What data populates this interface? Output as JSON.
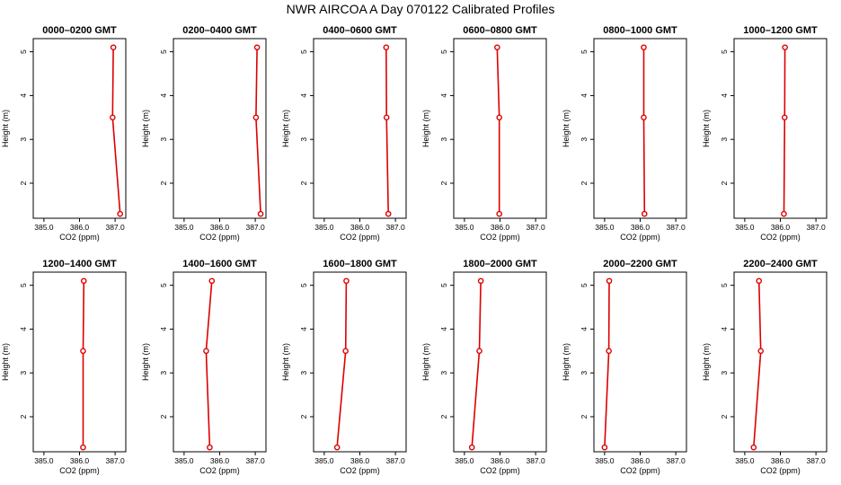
{
  "title": "NWR AIRCOA A  Day 070122  Calibrated Profiles",
  "style": {
    "line_color": "#dd0000",
    "point_color": "#dd0000",
    "axis_color": "#000000"
  },
  "chart_data": [
    {
      "type": "line",
      "title": "0000–0200 GMT",
      "xlabel": "CO2 (ppm)",
      "ylabel": "Height (m)",
      "xlim": [
        384.7,
        387.3
      ],
      "ylim": [
        1.2,
        5.3
      ],
      "xticks": [
        385.0,
        386.0,
        387.0
      ],
      "xtick_labels": [
        "385.0",
        "386.0",
        "387.0"
      ],
      "yticks": [
        2,
        3,
        4,
        5
      ],
      "ytick_labels": [
        "2",
        "3",
        "4",
        "5"
      ],
      "series": [
        {
          "x": [
            387.14,
            386.93,
            386.95
          ],
          "y": [
            1.3,
            3.5,
            5.1
          ]
        }
      ]
    },
    {
      "type": "line",
      "title": "0200–0400 GMT",
      "xlabel": "CO2 (ppm)",
      "ylabel": "Height (m)",
      "xlim": [
        384.7,
        387.3
      ],
      "ylim": [
        1.2,
        5.3
      ],
      "xticks": [
        385.0,
        386.0,
        387.0
      ],
      "xtick_labels": [
        "385.0",
        "386.0",
        "387.0"
      ],
      "yticks": [
        2,
        3,
        4,
        5
      ],
      "ytick_labels": [
        "2",
        "3",
        "4",
        "5"
      ],
      "series": [
        {
          "x": [
            387.15,
            387.02,
            387.05
          ],
          "y": [
            1.3,
            3.5,
            5.1
          ]
        }
      ]
    },
    {
      "type": "line",
      "title": "0400–0600 GMT",
      "xlabel": "CO2 (ppm)",
      "ylabel": "Height (m)",
      "xlim": [
        384.7,
        387.3
      ],
      "ylim": [
        1.2,
        5.3
      ],
      "xticks": [
        385.0,
        386.0,
        387.0
      ],
      "xtick_labels": [
        "385.0",
        "386.0",
        "387.0"
      ],
      "yticks": [
        2,
        3,
        4,
        5
      ],
      "ytick_labels": [
        "2",
        "3",
        "4",
        "5"
      ],
      "series": [
        {
          "x": [
            386.8,
            386.75,
            386.74
          ],
          "y": [
            1.3,
            3.5,
            5.1
          ]
        }
      ]
    },
    {
      "type": "line",
      "title": "0600–0800 GMT",
      "xlabel": "CO2 (ppm)",
      "ylabel": "Height (m)",
      "xlim": [
        384.7,
        387.3
      ],
      "ylim": [
        1.2,
        5.3
      ],
      "xticks": [
        385.0,
        386.0,
        387.0
      ],
      "xtick_labels": [
        "385.0",
        "386.0",
        "387.0"
      ],
      "yticks": [
        2,
        3,
        4,
        5
      ],
      "ytick_labels": [
        "2",
        "3",
        "4",
        "5"
      ],
      "series": [
        {
          "x": [
            385.98,
            385.98,
            385.92
          ],
          "y": [
            1.3,
            3.5,
            5.1
          ]
        }
      ]
    },
    {
      "type": "line",
      "title": "0800–1000 GMT",
      "xlabel": "CO2 (ppm)",
      "ylabel": "Height (m)",
      "xlim": [
        384.7,
        387.3
      ],
      "ylim": [
        1.2,
        5.3
      ],
      "xticks": [
        385.0,
        386.0,
        387.0
      ],
      "xtick_labels": [
        "385.0",
        "386.0",
        "387.0"
      ],
      "yticks": [
        2,
        3,
        4,
        5
      ],
      "ytick_labels": [
        "2",
        "3",
        "4",
        "5"
      ],
      "series": [
        {
          "x": [
            386.12,
            386.1,
            386.1
          ],
          "y": [
            1.3,
            3.5,
            5.1
          ]
        }
      ]
    },
    {
      "type": "line",
      "title": "1000–1200 GMT",
      "xlabel": "CO2 (ppm)",
      "ylabel": "Height (m)",
      "xlim": [
        384.7,
        387.3
      ],
      "ylim": [
        1.2,
        5.3
      ],
      "xticks": [
        385.0,
        386.0,
        387.0
      ],
      "xtick_labels": [
        "385.0",
        "386.0",
        "387.0"
      ],
      "yticks": [
        2,
        3,
        4,
        5
      ],
      "ytick_labels": [
        "2",
        "3",
        "4",
        "5"
      ],
      "series": [
        {
          "x": [
            386.1,
            386.12,
            386.13
          ],
          "y": [
            1.3,
            3.5,
            5.1
          ]
        }
      ]
    },
    {
      "type": "line",
      "title": "1200–1400 GMT",
      "xlabel": "CO2 (ppm)",
      "ylabel": "Height (m)",
      "xlim": [
        384.7,
        387.3
      ],
      "ylim": [
        1.2,
        5.3
      ],
      "xticks": [
        385.0,
        386.0,
        387.0
      ],
      "xtick_labels": [
        "385.0",
        "386.0",
        "387.0"
      ],
      "yticks": [
        2,
        3,
        4,
        5
      ],
      "ytick_labels": [
        "2",
        "3",
        "4",
        "5"
      ],
      "series": [
        {
          "x": [
            386.1,
            386.1,
            386.12
          ],
          "y": [
            1.3,
            3.5,
            5.1
          ]
        }
      ]
    },
    {
      "type": "line",
      "title": "1400–1600 GMT",
      "xlabel": "CO2 (ppm)",
      "ylabel": "Height (m)",
      "xlim": [
        384.7,
        387.3
      ],
      "ylim": [
        1.2,
        5.3
      ],
      "xticks": [
        385.0,
        386.0,
        387.0
      ],
      "xtick_labels": [
        "385.0",
        "386.0",
        "387.0"
      ],
      "yticks": [
        2,
        3,
        4,
        5
      ],
      "ytick_labels": [
        "2",
        "3",
        "4",
        "5"
      ],
      "series": [
        {
          "x": [
            385.72,
            385.62,
            385.78
          ],
          "y": [
            1.3,
            3.5,
            5.1
          ]
        }
      ]
    },
    {
      "type": "line",
      "title": "1600–1800 GMT",
      "xlabel": "CO2 (ppm)",
      "ylabel": "Height (m)",
      "xlim": [
        384.7,
        387.3
      ],
      "ylim": [
        1.2,
        5.3
      ],
      "xticks": [
        385.0,
        386.0,
        387.0
      ],
      "xtick_labels": [
        "385.0",
        "386.0",
        "387.0"
      ],
      "yticks": [
        2,
        3,
        4,
        5
      ],
      "ytick_labels": [
        "2",
        "3",
        "4",
        "5"
      ],
      "series": [
        {
          "x": [
            385.36,
            385.6,
            385.62
          ],
          "y": [
            1.3,
            3.5,
            5.1
          ]
        }
      ]
    },
    {
      "type": "line",
      "title": "1800–2000 GMT",
      "xlabel": "CO2 (ppm)",
      "ylabel": "Height (m)",
      "xlim": [
        384.7,
        387.3
      ],
      "ylim": [
        1.2,
        5.3
      ],
      "xticks": [
        385.0,
        386.0,
        387.0
      ],
      "xtick_labels": [
        "385.0",
        "386.0",
        "387.0"
      ],
      "yticks": [
        2,
        3,
        4,
        5
      ],
      "ytick_labels": [
        "2",
        "3",
        "4",
        "5"
      ],
      "series": [
        {
          "x": [
            385.21,
            385.42,
            385.46
          ],
          "y": [
            1.3,
            3.5,
            5.1
          ]
        }
      ]
    },
    {
      "type": "line",
      "title": "2000–2200 GMT",
      "xlabel": "CO2 (ppm)",
      "ylabel": "Height (m)",
      "xlim": [
        384.7,
        387.3
      ],
      "ylim": [
        1.2,
        5.3
      ],
      "xticks": [
        385.0,
        386.0,
        387.0
      ],
      "xtick_labels": [
        "385.0",
        "386.0",
        "387.0"
      ],
      "yticks": [
        2,
        3,
        4,
        5
      ],
      "ytick_labels": [
        "2",
        "3",
        "4",
        "5"
      ],
      "series": [
        {
          "x": [
            385.0,
            385.12,
            385.13
          ],
          "y": [
            1.3,
            3.5,
            5.1
          ]
        }
      ]
    },
    {
      "type": "line",
      "title": "2200–2400 GMT",
      "xlabel": "CO2 (ppm)",
      "ylabel": "Height (m)",
      "xlim": [
        384.7,
        387.3
      ],
      "ylim": [
        1.2,
        5.3
      ],
      "xticks": [
        385.0,
        386.0,
        387.0
      ],
      "xtick_labels": [
        "385.0",
        "386.0",
        "387.0"
      ],
      "yticks": [
        2,
        3,
        4,
        5
      ],
      "ytick_labels": [
        "2",
        "3",
        "4",
        "5"
      ],
      "series": [
        {
          "x": [
            385.25,
            385.45,
            385.4
          ],
          "y": [
            1.3,
            3.5,
            5.1
          ]
        }
      ]
    }
  ]
}
